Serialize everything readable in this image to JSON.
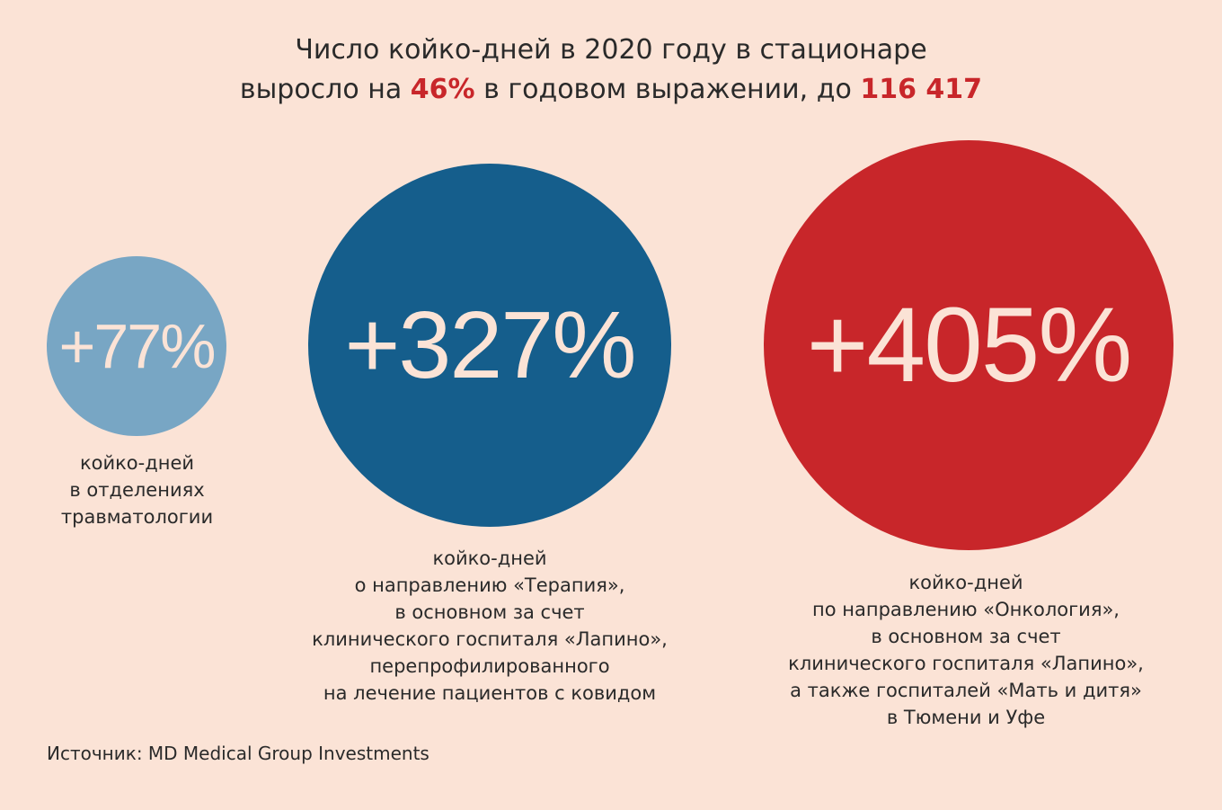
{
  "title": {
    "line1": "Число койко-дней в 2020 году в стационаре",
    "line2_before": "выросло на ",
    "line2_pct": "46%",
    "line2_middle": " в годовом выражении, до ",
    "line2_total": "116 417"
  },
  "colors": {
    "background": "#fbe3d6",
    "accent_red": "#c8262a",
    "light_blue": "#78a6c4",
    "dark_blue": "#155e8c",
    "text": "#2a2a2a"
  },
  "chart_data": {
    "type": "bubble",
    "categories": [
      "травматология",
      "Терапия",
      "Онкология"
    ],
    "values": [
      77,
      327,
      405
    ],
    "unit": "%",
    "items": [
      {
        "label": "+77%",
        "value": 77,
        "color": "#78a6c4",
        "caption": "койко-дней\nв отделениях\nтравматологии"
      },
      {
        "label": "+327%",
        "value": 327,
        "color": "#155e8c",
        "caption": "койко-дней\nо направлению «Терапия»,\nв основном за счет\nклинического госпиталя «Лапино»,\nперепрофилированного\nна лечение пациентов с ковидом"
      },
      {
        "label": "+405%",
        "value": 405,
        "color": "#c8262a",
        "caption": "койко-дней\nпо направлению «Онкология»,\nв основном за счет\nклинического госпиталя «Лапино»,\nа также госпиталей «Мать и дитя»\nв Тюмени и Уфе"
      }
    ]
  },
  "source": "Источник: MD Medical Group Investments"
}
